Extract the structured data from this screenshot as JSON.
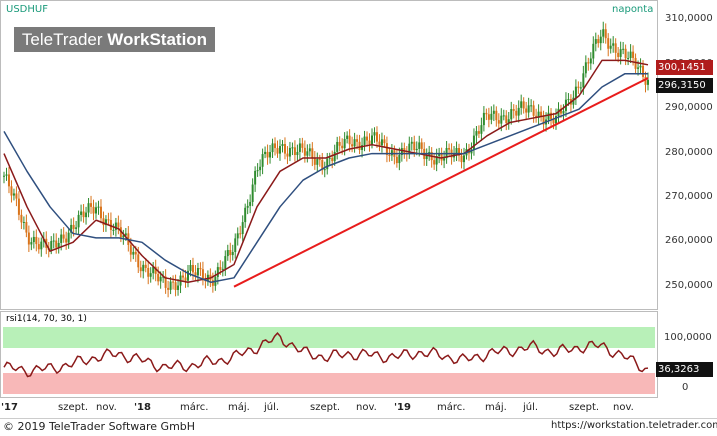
{
  "header": {
    "symbol": "USDHUF",
    "period": "naponta",
    "brand": {
      "prefix": "TeleTrader ",
      "strong": "WorkStation"
    }
  },
  "price_axis": {
    "ticks": [
      "310,0000",
      "300,0000",
      "290,0000",
      "280,0000",
      "270,0000",
      "260,0000",
      "250,0000"
    ],
    "tags": {
      "last_ma": "300,1451",
      "last_close": "296,3150"
    }
  },
  "rsi_panel": {
    "label": "rsi1(14, 70, 30, 1)",
    "ticks": [
      "100,0000",
      "0"
    ],
    "last_value": "36,3263"
  },
  "time_axis": [
    "'17",
    "szept.",
    "nov.",
    "'18",
    "márc.",
    "máj.",
    "júl.",
    "szept.",
    "nov.",
    "'19",
    "márc.",
    "máj.",
    "júl.",
    "szept.",
    "nov."
  ],
  "footer": {
    "copyright": "© 2019 TeleTrader Software GmbH",
    "url": "https://workstation.teletrader.com"
  },
  "colors": {
    "candle_up": "#2e8b2e",
    "candle_down": "#d9731a",
    "ma_short": "#8b1a1a",
    "ma_long": "#2f4f7f",
    "trendline": "#e81c1c",
    "rsi": "#8b1a1a",
    "overbought_zone": "#b8f0b8",
    "oversold_zone": "#f8b8b8"
  },
  "chart_data": {
    "type": "line",
    "title": "USDHUF",
    "x": [
      "2017-07",
      "2017-08",
      "2017-09",
      "2017-10",
      "2017-11",
      "2017-12",
      "2018-01",
      "2018-02",
      "2018-03",
      "2018-04",
      "2018-05",
      "2018-06",
      "2018-07",
      "2018-08",
      "2018-09",
      "2018-10",
      "2018-11",
      "2018-12",
      "2019-01",
      "2019-02",
      "2019-03",
      "2019-04",
      "2019-05",
      "2019-06",
      "2019-07",
      "2019-08",
      "2019-09",
      "2019-10",
      "2019-11"
    ],
    "series": [
      {
        "values": [
          275,
          262,
          258,
          264,
          268,
          262,
          255,
          250,
          253,
          252,
          258,
          277,
          282,
          280,
          278,
          283,
          283,
          280,
          281,
          279,
          280,
          288,
          289,
          290,
          287,
          296,
          307,
          302,
          297
        ]
      },
      {
        "values": [
          280,
          268,
          258,
          260,
          265,
          263,
          257,
          252,
          251,
          252,
          255,
          268,
          276,
          279,
          279,
          281,
          282,
          281,
          280,
          279,
          280,
          284,
          287,
          288,
          289,
          293,
          301,
          301,
          300
        ]
      },
      {
        "values": [
          285,
          276,
          268,
          262,
          261,
          261,
          260,
          256,
          253,
          251,
          252,
          260,
          268,
          274,
          277,
          279,
          280,
          280,
          280,
          280,
          280,
          282,
          284,
          286,
          288,
          290,
          295,
          298,
          298
        ]
      }
    ],
    "trendline": {
      "from": {
        "x": "2018-05",
        "y": 250
      },
      "to": {
        "x": "2019-11",
        "y": 297
      }
    },
    "rsi": {
      "levels": {
        "overbought": 70,
        "oversold": 30
      },
      "values": [
        40,
        35,
        38,
        45,
        55,
        60,
        50,
        40,
        42,
        48,
        55,
        70,
        85,
        62,
        55,
        60,
        58,
        55,
        62,
        58,
        50,
        60,
        65,
        70,
        62,
        70,
        72,
        55,
        36
      ]
    },
    "ylim": [
      247,
      311
    ],
    "grid": false
  }
}
